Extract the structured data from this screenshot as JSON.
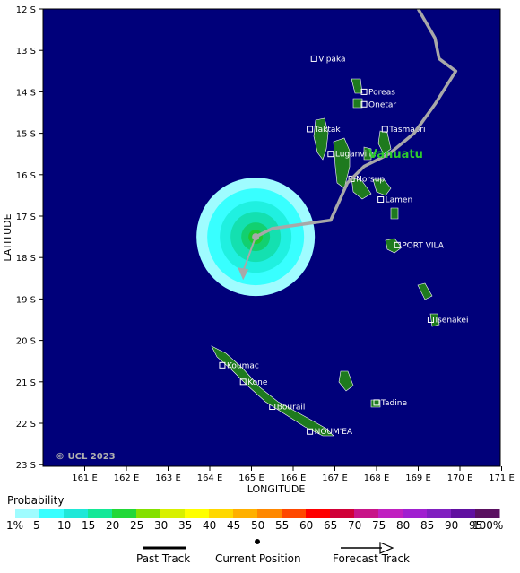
{
  "axes": {
    "x_title": "LONGITUDE",
    "y_title": "LATITUDE",
    "x_ticks": [
      "161 E",
      "162 E",
      "163 E",
      "164 E",
      "165 E",
      "166 E",
      "167 E",
      "168 E",
      "169 E",
      "170 E",
      "171 E"
    ],
    "y_ticks": [
      "12 S",
      "13 S",
      "14 S",
      "15 S",
      "16 S",
      "17 S",
      "18 S",
      "19 S",
      "20 S",
      "21 S",
      "22 S",
      "23 S"
    ],
    "lon_range": [
      160,
      171
    ],
    "lat_range": [
      -12,
      -23
    ]
  },
  "colors": {
    "ocean": "#00007a",
    "land": "#1e7a1e",
    "track": "#a8a8a8",
    "country_label": "#2ecc2e"
  },
  "places": [
    {
      "name": "Vipaka",
      "lon": 166.5,
      "lat": -13.2
    },
    {
      "name": "Poreas",
      "lon": 167.7,
      "lat": -14.0
    },
    {
      "name": "Onetar",
      "lon": 167.7,
      "lat": -14.3
    },
    {
      "name": "Taktak",
      "lon": 166.4,
      "lat": -14.9
    },
    {
      "name": "Tasmaori",
      "lon": 168.2,
      "lat": -14.9
    },
    {
      "name": "Luganville",
      "lon": 166.9,
      "lat": -15.5
    },
    {
      "name": "Norsup",
      "lon": 167.4,
      "lat": -16.1
    },
    {
      "name": "Lamen",
      "lon": 168.1,
      "lat": -16.6
    },
    {
      "name": "PORT VILA",
      "lon": 168.5,
      "lat": -17.7
    },
    {
      "name": "Isenakei",
      "lon": 169.3,
      "lat": -19.5
    },
    {
      "name": "Koumac",
      "lon": 164.3,
      "lat": -20.6
    },
    {
      "name": "Kone",
      "lon": 164.8,
      "lat": -21.0
    },
    {
      "name": "Bourail",
      "lon": 165.5,
      "lat": -21.6
    },
    {
      "name": "Tadine",
      "lon": 168.0,
      "lat": -21.5
    },
    {
      "name": "NOUM'EA",
      "lon": 166.4,
      "lat": -22.2
    }
  ],
  "country_label": "Vanuatu",
  "copyright": "© UCL 2023",
  "track": {
    "past": [
      [
        169.0,
        -12.0
      ],
      [
        169.4,
        -12.7
      ],
      [
        169.5,
        -13.2
      ],
      [
        169.9,
        -13.5
      ],
      [
        169.4,
        -14.3
      ],
      [
        168.9,
        -15.0
      ],
      [
        168.3,
        -15.5
      ],
      [
        167.7,
        -15.8
      ],
      [
        167.3,
        -16.2
      ],
      [
        166.9,
        -17.1
      ],
      [
        165.5,
        -17.3
      ],
      [
        165.1,
        -17.5
      ]
    ],
    "current": [
      165.1,
      -17.5
    ],
    "forecast": [
      [
        165.1,
        -17.5
      ],
      [
        164.8,
        -18.5
      ]
    ]
  },
  "probability_cloud": {
    "center": [
      165.1,
      -17.5
    ],
    "radius_deg": 1.2
  },
  "legend": {
    "title": "Probability",
    "labels": [
      "1%",
      "5",
      "10",
      "15",
      "20",
      "25",
      "30",
      "35",
      "40",
      "45",
      "50",
      "55",
      "60",
      "65",
      "70",
      "75",
      "80",
      "85",
      "90",
      "95",
      "100%"
    ],
    "colors": [
      "#9ffcff",
      "#38ffff",
      "#20e8d8",
      "#14e898",
      "#22d838",
      "#84e000",
      "#d8f000",
      "#ffff00",
      "#ffd800",
      "#ffb000",
      "#ff8800",
      "#ff4800",
      "#ff0000",
      "#d00038",
      "#c81488",
      "#c020c0",
      "#a020d0",
      "#8020c0",
      "#6010a0",
      "#5a1060"
    ],
    "keys": [
      "Past Track",
      "Current Position",
      "Forecast Track"
    ]
  }
}
